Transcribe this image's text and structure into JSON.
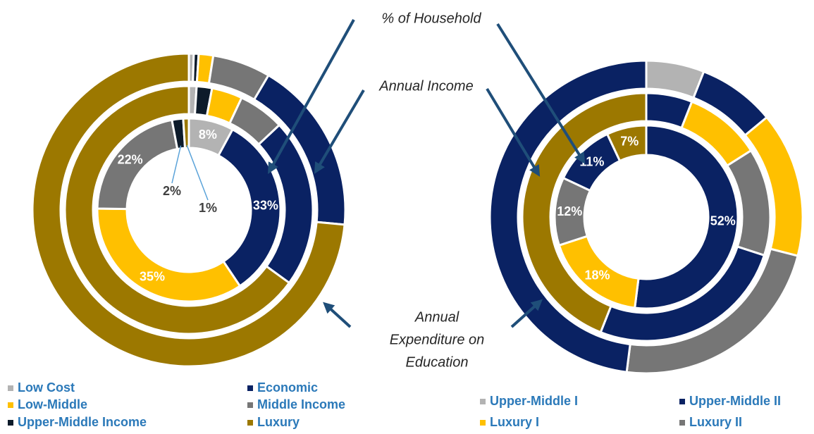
{
  "chart_data": [
    {
      "type": "donut",
      "rings": [
        {
          "values": [
            8,
            33,
            35,
            22,
            2,
            1
          ],
          "value_labels": [
            "8%",
            "33%",
            "35%",
            "22%",
            "2%",
            "1%"
          ],
          "colors": [
            "#b3b3b3",
            "#0a2263",
            "#ffc000",
            "#767676",
            "#0d1b2a",
            "#9c7800"
          ]
        },
        {
          "values": [
            1,
            2,
            4,
            6,
            22,
            65
          ],
          "colors": [
            "#b3b3b3",
            "#0d1b2a",
            "#ffc000",
            "#767676",
            "#0a2263",
            "#9c7800"
          ]
        },
        {
          "values": [
            0.5,
            0.5,
            1.5,
            6,
            18,
            73.5
          ],
          "colors": [
            "#b3b3b3",
            "#0d1b2a",
            "#ffc000",
            "#767676",
            "#0a2263",
            "#9c7800"
          ]
        }
      ],
      "legend": [
        {
          "name": "Low Cost",
          "color": "#b3b3b3"
        },
        {
          "name": "Economic",
          "color": "#0a2263"
        },
        {
          "name": "Low-Middle",
          "color": "#ffc000"
        },
        {
          "name": "Middle Income",
          "color": "#767676"
        },
        {
          "name": "Upper-Middle Income",
          "color": "#0d1b2a"
        },
        {
          "name": "Luxury",
          "color": "#9c7800"
        }
      ]
    },
    {
      "type": "donut",
      "rings": [
        {
          "values": [
            52,
            18,
            12,
            11,
            7
          ],
          "value_labels": [
            "52%",
            "18%",
            "12%",
            "11%",
            "7%"
          ],
          "colors": [
            "#0a2263",
            "#ffc000",
            "#767676",
            "#0a2263",
            "#9c7800"
          ]
        },
        {
          "values": [
            6,
            10,
            14,
            26,
            44
          ],
          "colors": [
            "#0a2263",
            "#ffc000",
            "#767676",
            "#0a2263",
            "#9c7800"
          ]
        },
        {
          "values": [
            6,
            8,
            15,
            23,
            48
          ],
          "colors": [
            "#b3b3b3",
            "#0a2263",
            "#ffc000",
            "#767676",
            "#0a2263"
          ]
        }
      ],
      "legend": [
        {
          "name": "Upper-Middle I",
          "color": "#b3b3b3"
        },
        {
          "name": "Upper-Middle II",
          "color": "#0a2263"
        },
        {
          "name": "Luxury I",
          "color": "#ffc000"
        },
        {
          "name": "Luxury II",
          "color": "#767676"
        }
      ]
    }
  ],
  "annotations": [
    "% of Household",
    "Annual Income",
    "Annual",
    "Expenditure on",
    "Education"
  ]
}
